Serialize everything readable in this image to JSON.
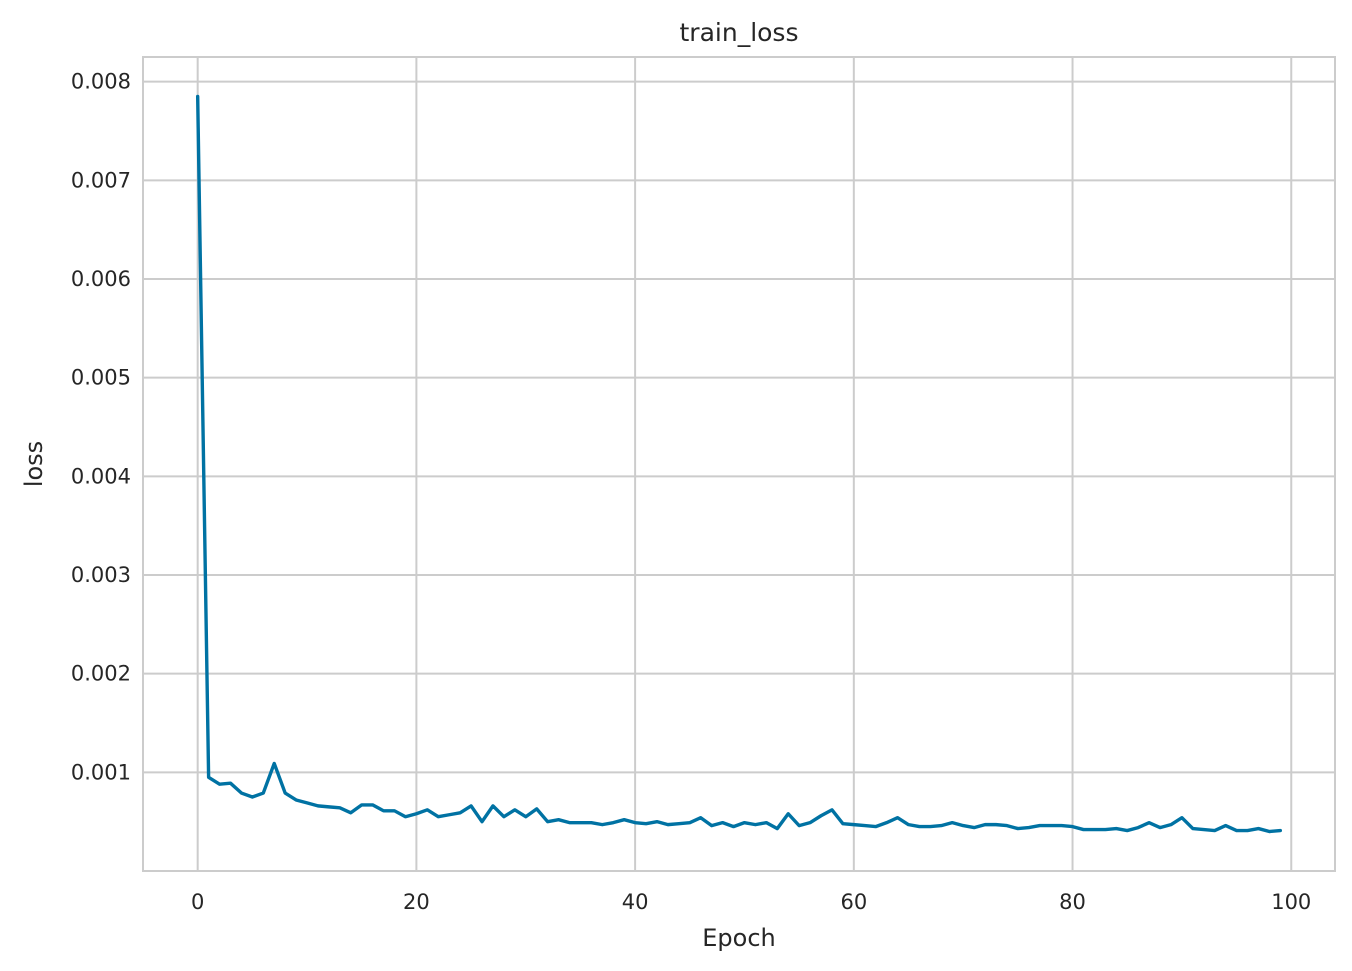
{
  "chart_data": {
    "type": "line",
    "title": "train_loss",
    "xlabel": "Epoch",
    "ylabel": "loss",
    "xlim": [
      -5,
      104
    ],
    "ylim": [
      0.0,
      0.00825
    ],
    "xticks": [
      0,
      20,
      40,
      60,
      80,
      100
    ],
    "yticks": [
      0.001,
      0.002,
      0.003,
      0.004,
      0.005,
      0.006,
      0.007,
      0.008
    ],
    "xtick_labels": [
      "0",
      "20",
      "40",
      "60",
      "80",
      "100"
    ],
    "ytick_labels": [
      "0.001",
      "0.002",
      "0.003",
      "0.004",
      "0.005",
      "0.006",
      "0.007",
      "0.008"
    ],
    "grid": true,
    "legend": false,
    "series": [
      {
        "color": "#0072a3",
        "x": [
          0,
          1,
          2,
          3,
          4,
          5,
          6,
          7,
          8,
          9,
          10,
          11,
          12,
          13,
          14,
          15,
          16,
          17,
          18,
          19,
          20,
          21,
          22,
          23,
          24,
          25,
          26,
          27,
          28,
          29,
          30,
          31,
          32,
          33,
          34,
          35,
          36,
          37,
          38,
          39,
          40,
          41,
          42,
          43,
          44,
          45,
          46,
          47,
          48,
          49,
          50,
          51,
          52,
          53,
          54,
          55,
          56,
          57,
          58,
          59,
          60,
          61,
          62,
          63,
          64,
          65,
          66,
          67,
          68,
          69,
          70,
          71,
          72,
          73,
          74,
          75,
          76,
          77,
          78,
          79,
          80,
          81,
          82,
          83,
          84,
          85,
          86,
          87,
          88,
          89,
          90,
          91,
          92,
          93,
          94,
          95,
          96,
          97,
          98,
          99
        ],
        "values": [
          0.00785,
          0.00095,
          0.00088,
          0.00089,
          0.00079,
          0.00075,
          0.00079,
          0.00109,
          0.00079,
          0.00072,
          0.00069,
          0.00066,
          0.00065,
          0.00064,
          0.00059,
          0.00067,
          0.00067,
          0.00061,
          0.00061,
          0.00055,
          0.00058,
          0.00062,
          0.00055,
          0.00057,
          0.00059,
          0.00066,
          0.0005,
          0.00066,
          0.00055,
          0.00062,
          0.00055,
          0.00063,
          0.0005,
          0.00052,
          0.00049,
          0.00049,
          0.00049,
          0.00047,
          0.00049,
          0.00052,
          0.00049,
          0.00048,
          0.0005,
          0.00047,
          0.00048,
          0.00049,
          0.00054,
          0.00046,
          0.00049,
          0.00045,
          0.00049,
          0.00047,
          0.00049,
          0.00043,
          0.00058,
          0.00046,
          0.00049,
          0.00056,
          0.00062,
          0.00048,
          0.00047,
          0.00046,
          0.00045,
          0.00049,
          0.00054,
          0.00047,
          0.00045,
          0.00045,
          0.00046,
          0.00049,
          0.00046,
          0.00044,
          0.00047,
          0.00047,
          0.00046,
          0.00043,
          0.00044,
          0.00046,
          0.00046,
          0.00046,
          0.00045,
          0.00042,
          0.00042,
          0.00042,
          0.00043,
          0.00041,
          0.00044,
          0.00049,
          0.00044,
          0.00047,
          0.00054,
          0.00043,
          0.00042,
          0.00041,
          0.00046,
          0.00041,
          0.00041,
          0.00043,
          0.0004,
          0.00041
        ]
      }
    ]
  }
}
